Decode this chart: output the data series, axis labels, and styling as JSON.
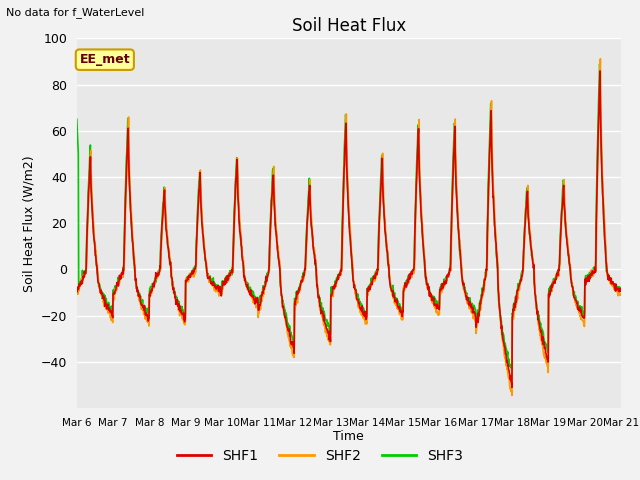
{
  "title": "Soil Heat Flux",
  "top_left_note": "No data for f_WaterLevel",
  "box_label": "EE_met",
  "ylabel": "Soil Heat Flux (W/m2)",
  "xlabel": "Time",
  "ylim": [
    -60,
    100
  ],
  "yticks": [
    -40,
    -20,
    0,
    20,
    40,
    60,
    80,
    100
  ],
  "xtick_labels": [
    "Mar 6",
    "Mar 7",
    "Mar 8",
    "Mar 9",
    "Mar 10",
    "Mar 11",
    "Mar 12",
    "Mar 13",
    "Mar 14",
    "Mar 15",
    "Mar 16",
    "Mar 17",
    "Mar 18",
    "Mar 19",
    "Mar 20",
    "Mar 21"
  ],
  "colors": {
    "SHF1": "#dd0000",
    "SHF2": "#ff9900",
    "SHF3": "#00cc00"
  },
  "plot_bg": "#e8e8e8",
  "fig_bg": "#f2f2f2",
  "grid_color": "#ffffff",
  "legend_box_facecolor": "#ffff99",
  "legend_box_edgecolor": "#cc9900",
  "line_width": 1.2
}
